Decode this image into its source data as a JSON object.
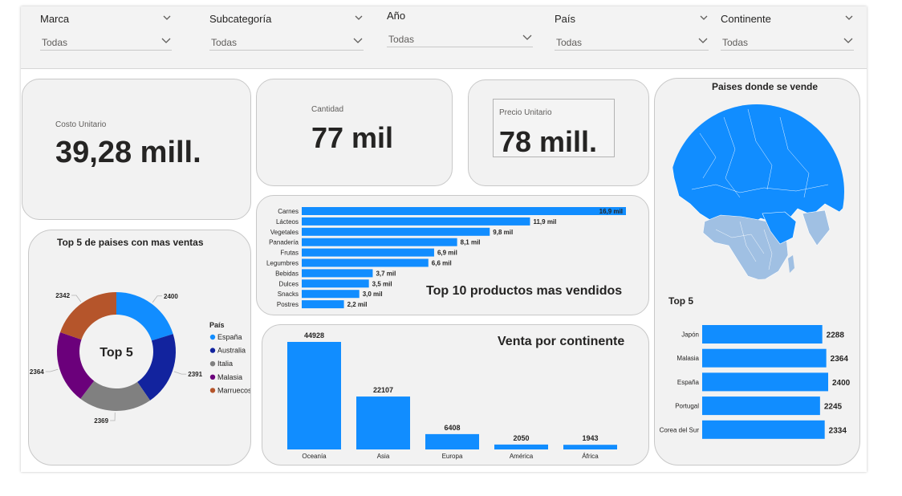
{
  "filters": [
    {
      "title": "Marca",
      "value": "Todas"
    },
    {
      "title": "Subcategoría",
      "value": "Todas"
    },
    {
      "title": "Año",
      "value": "Todas"
    },
    {
      "title": "País",
      "value": "Todas"
    },
    {
      "title": "Continente",
      "value": "Todas"
    }
  ],
  "kpis": {
    "costo": {
      "label": "Costo Unitario",
      "value": "39,28 mill."
    },
    "cantidad": {
      "label": "Cantidad",
      "value": "77 mil"
    },
    "precio": {
      "label": "Precio Unitario",
      "value": "78 mill."
    }
  },
  "map": {
    "title": "Paises donde se vende"
  },
  "colors": {
    "accent": "#118dff",
    "card": "#f2f2f2",
    "border": "#c8c8c8"
  },
  "chart_data": [
    {
      "id": "donut",
      "type": "pie",
      "title": "Top 5 de paises con mas ventas",
      "center_label": "Top 5",
      "legend_title": "País",
      "legend_position": "right",
      "labels": [
        "España",
        "Australia",
        "Italia",
        "Malasia",
        "Marruecos"
      ],
      "values": [
        2400,
        2391,
        2369,
        2364,
        2342
      ],
      "value_labels": [
        "2400",
        "2391",
        "2369",
        "2364",
        "2342"
      ],
      "colors": [
        "#118dff",
        "#12239e",
        "#808080",
        "#6b007b",
        "#b5552b"
      ]
    },
    {
      "id": "productos",
      "type": "bar",
      "orientation": "horizontal",
      "title": "Top 10 productos mas vendidos",
      "categories": [
        "Carnes",
        "Lácteos",
        "Vegetales",
        "Panadería",
        "Frutas",
        "Legumbres",
        "Bebidas",
        "Dulces",
        "Snacks",
        "Postres"
      ],
      "values": [
        16900,
        11900,
        9800,
        8100,
        6900,
        6600,
        3700,
        3500,
        3000,
        2200
      ],
      "value_labels": [
        "16,9 mil",
        "11,9 mil",
        "9,8 mil",
        "8,1 mil",
        "6,9 mil",
        "6,6 mil",
        "3,7 mil",
        "3,5 mil",
        "3,0 mil",
        "2,2 mil"
      ],
      "color": "#118dff"
    },
    {
      "id": "continente",
      "type": "bar",
      "orientation": "vertical",
      "title": "Venta por continente",
      "categories": [
        "Oceanía",
        "Asia",
        "Europa",
        "América",
        "África"
      ],
      "values": [
        44928,
        22107,
        6408,
        2050,
        1943
      ],
      "value_labels": [
        "44928",
        "22107",
        "6408",
        "2050",
        "1943"
      ],
      "color": "#118dff"
    },
    {
      "id": "top5",
      "type": "bar",
      "orientation": "horizontal",
      "title": "Top 5",
      "categories": [
        "Japón",
        "Malasia",
        "España",
        "Portugal",
        "Corea del Sur"
      ],
      "values": [
        2288,
        2364,
        2400,
        2245,
        2334
      ],
      "value_labels": [
        "2288",
        "2364",
        "2400",
        "2245",
        "2334"
      ],
      "color": "#118dff"
    }
  ]
}
